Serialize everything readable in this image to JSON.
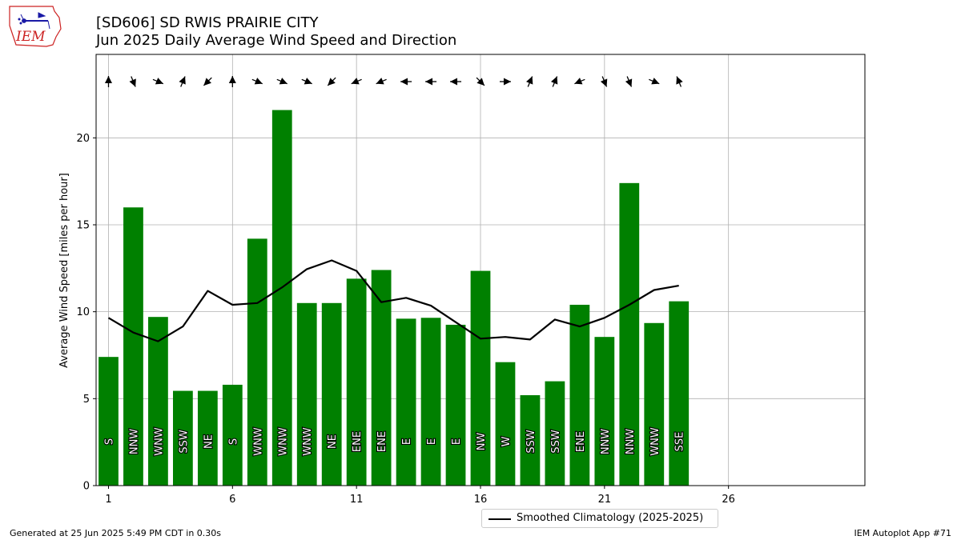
{
  "header": {
    "logo_text": "IEM",
    "title_line1": "[SD606] SD RWIS PRAIRIE CITY",
    "title_line2": "Jun 2025 Daily Average Wind Speed and Direction"
  },
  "footer": {
    "left": "Generated at 25 Jun 2025 5:49 PM CDT in 0.30s",
    "right": "IEM Autoplot App #71"
  },
  "legend": {
    "line_label": "Smoothed Climatology (2025-2025)"
  },
  "colors": {
    "bar": "#008000",
    "line": "#000000",
    "grid": "#b0b0b0",
    "logo_red": "#cc2222",
    "logo_blue": "#1a1aa6"
  },
  "chart_data": {
    "type": "bar",
    "ylabel": "Average Wind Speed [miles per hour]",
    "xlabel": "",
    "xlim": [
      0.5,
      31.5
    ],
    "ylim": [
      0,
      24.8
    ],
    "xticks": [
      1,
      6,
      11,
      16,
      21,
      26
    ],
    "yticks": [
      0,
      5,
      10,
      15,
      20
    ],
    "grid": true,
    "legend_position": "below-center",
    "days": [
      1,
      2,
      3,
      4,
      5,
      6,
      7,
      8,
      9,
      10,
      11,
      12,
      13,
      14,
      15,
      16,
      17,
      18,
      19,
      20,
      21,
      22,
      23,
      24
    ],
    "series": [
      {
        "type": "bar",
        "values": [
          7.4,
          16.0,
          9.7,
          5.45,
          5.45,
          5.8,
          14.2,
          21.6,
          10.5,
          10.5,
          11.9,
          12.4,
          9.6,
          9.65,
          9.25,
          12.35,
          7.1,
          5.2,
          6.0,
          10.4,
          8.55,
          17.4,
          9.35,
          10.6
        ]
      },
      {
        "type": "line",
        "name": "Smoothed Climatology (2025-2025)",
        "values": [
          9.65,
          8.8,
          8.3,
          9.15,
          11.2,
          10.4,
          10.5,
          11.4,
          12.45,
          12.95,
          12.35,
          10.55,
          10.8,
          10.35,
          9.4,
          8.45,
          8.55,
          8.4,
          9.55,
          9.15,
          9.65,
          10.4,
          11.25,
          11.5
        ]
      }
    ],
    "direction_labels": [
      "S",
      "NNW",
      "WNW",
      "SSW",
      "NE",
      "S",
      "WNW",
      "WNW",
      "WNW",
      "NE",
      "ENE",
      "ENE",
      "E",
      "E",
      "E",
      "NW",
      "W",
      "SSW",
      "SSW",
      "ENE",
      "NNW",
      "NNW",
      "WNW",
      "SSE"
    ],
    "arrow_directions_deg": [
      180,
      337.5,
      292.5,
      202.5,
      45,
      180,
      292.5,
      292.5,
      292.5,
      45,
      67.5,
      67.5,
      90,
      90,
      90,
      315,
      270,
      202.5,
      202.5,
      67.5,
      337.5,
      337.5,
      292.5,
      157.5
    ]
  }
}
